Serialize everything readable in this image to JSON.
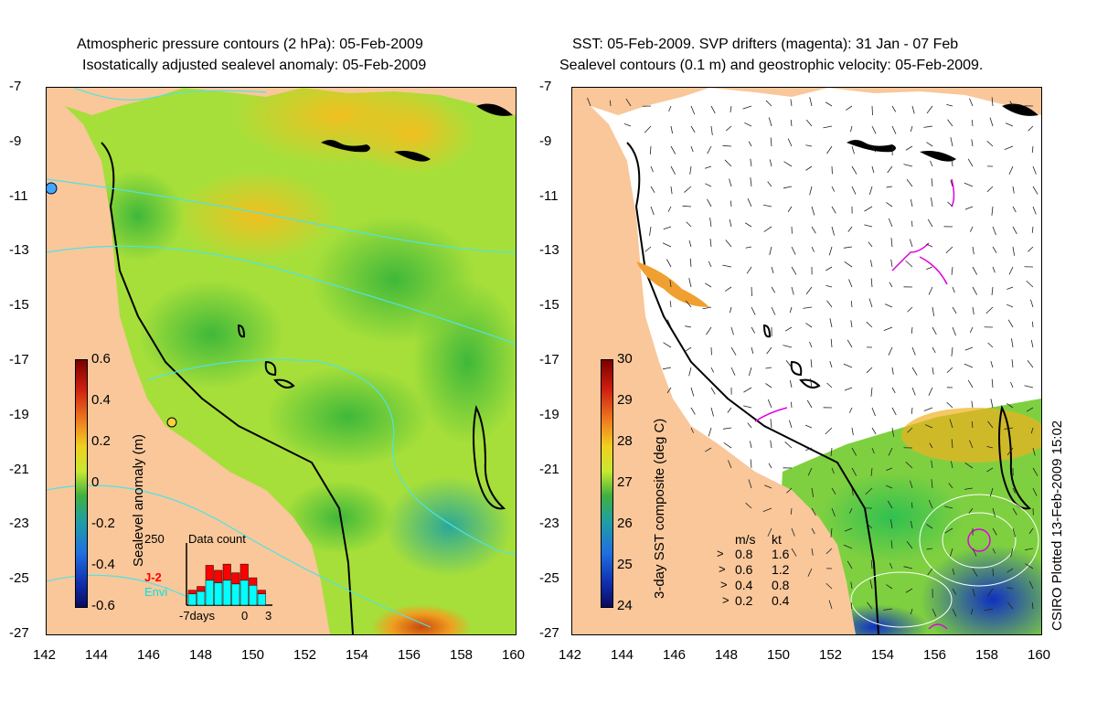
{
  "left_panel": {
    "title_line1": "Atmospheric pressure contours (2 hPa): 05-Feb-2009",
    "title_line2": "Isostatically adjusted sealevel anomaly: 05-Feb-2009",
    "colorbar": {
      "label": "Sealevel anomaly (m)",
      "ticks": [
        "0.6",
        "0.4",
        "0.2",
        "0",
        "-0.2",
        "-0.4",
        "-0.6"
      ]
    },
    "inset": {
      "title": "Data count",
      "y_max": "250",
      "legend_j2": "J-2",
      "legend_envi": "Envi",
      "x_left": "-7days",
      "x_zero": "0",
      "x_right": "3",
      "bars_total": [
        60,
        75,
        160,
        140,
        165,
        130,
        165,
        110,
        60
      ],
      "bars_envi": [
        45,
        55,
        100,
        90,
        100,
        85,
        100,
        80,
        45
      ]
    }
  },
  "right_panel": {
    "title_line1": "SST: 05-Feb-2009. SVP drifters (magenta): 31 Jan - 07 Feb",
    "title_line2": "Sealevel contours (0.1 m) and geostrophic velocity: 05-Feb-2009.",
    "colorbar": {
      "label": "3-day SST composite (deg C)",
      "ticks": [
        "30",
        "29",
        "28",
        "27",
        "26",
        "25",
        "24"
      ]
    },
    "speed_legend": {
      "header_ms": "m/s",
      "header_kt": "kt",
      "rows": [
        {
          "ms": "0.8",
          "kt": "1.6"
        },
        {
          "ms": "0.6",
          "kt": "1.2"
        },
        {
          "ms": "0.4",
          "kt": "0.8"
        },
        {
          "ms": "0.2",
          "kt": "0.4"
        }
      ]
    },
    "credit": "CSIRO Plotted 13-Feb-2009 15:02"
  },
  "axes": {
    "lat_ticks": [
      "-7",
      "-9",
      "-11",
      "-13",
      "-15",
      "-17",
      "-19",
      "-21",
      "-23",
      "-25",
      "-27"
    ],
    "lon_ticks": [
      "142",
      "144",
      "146",
      "148",
      "150",
      "152",
      "154",
      "156",
      "158",
      "160"
    ]
  },
  "colors": {
    "land": "#f9c79a",
    "ocean_green": "#9fe03a",
    "ocean_yellow": "#d8ec2a",
    "contour_cyan": "#4fe3e3",
    "drifter_magenta": "#e000e0",
    "j2_red": "#ff0000",
    "envi_cyan": "#00ffff"
  }
}
